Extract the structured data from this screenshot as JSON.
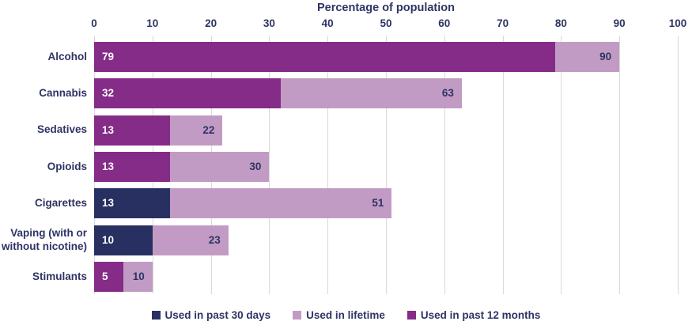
{
  "chart_data": {
    "type": "bar",
    "orientation": "horizontal",
    "title": "Percentage of population",
    "xlabel": "Percentage of population",
    "xlim": [
      0,
      100
    ],
    "ticks": [
      0,
      10,
      20,
      30,
      40,
      50,
      60,
      70,
      80,
      90,
      100
    ],
    "grid": true,
    "axis_position": "top",
    "legend_position": "bottom",
    "colors": {
      "past30": "#273060",
      "lifetime": "#c29bc4",
      "past12": "#852c88",
      "text": "#2e3464",
      "gridline": "#d9d9d9",
      "dark_value_text": "#ffffff"
    },
    "series_meta": {
      "past30": {
        "label": "Used in past 30 days",
        "color": "#273060"
      },
      "lifetime": {
        "label": "Used in lifetime",
        "color": "#c29bc4"
      },
      "past12": {
        "label": "Used in past 12 months",
        "color": "#852c88"
      }
    },
    "legend_order": [
      "past30",
      "lifetime",
      "past12"
    ],
    "categories": [
      "Alcohol",
      "Cannabis",
      "Sedatives",
      "Opioids",
      "Cigarettes",
      "Vaping (with or without nicotine)",
      "Stimulants"
    ],
    "rows": [
      {
        "category": "Alcohol",
        "lifetime": 90,
        "dark_value": 79,
        "dark_series": "past12"
      },
      {
        "category": "Cannabis",
        "lifetime": 63,
        "dark_value": 32,
        "dark_series": "past12"
      },
      {
        "category": "Sedatives",
        "lifetime": 22,
        "dark_value": 13,
        "dark_series": "past12"
      },
      {
        "category": "Opioids",
        "lifetime": 30,
        "dark_value": 13,
        "dark_series": "past12"
      },
      {
        "category": "Cigarettes",
        "lifetime": 51,
        "dark_value": 13,
        "dark_series": "past30"
      },
      {
        "category": "Vaping (with or without nicotine)",
        "lifetime": 23,
        "dark_value": 10,
        "dark_series": "past30"
      },
      {
        "category": "Stimulants",
        "lifetime": 10,
        "dark_value": 5,
        "dark_series": "past12"
      }
    ],
    "series": [
      {
        "name": "Used in lifetime",
        "values": [
          90,
          63,
          22,
          30,
          51,
          23,
          10
        ]
      },
      {
        "name": "Used in past 12 months",
        "values": [
          79,
          32,
          13,
          13,
          null,
          null,
          5
        ]
      },
      {
        "name": "Used in past 30 days",
        "values": [
          null,
          null,
          null,
          null,
          13,
          10,
          null
        ]
      }
    ]
  }
}
